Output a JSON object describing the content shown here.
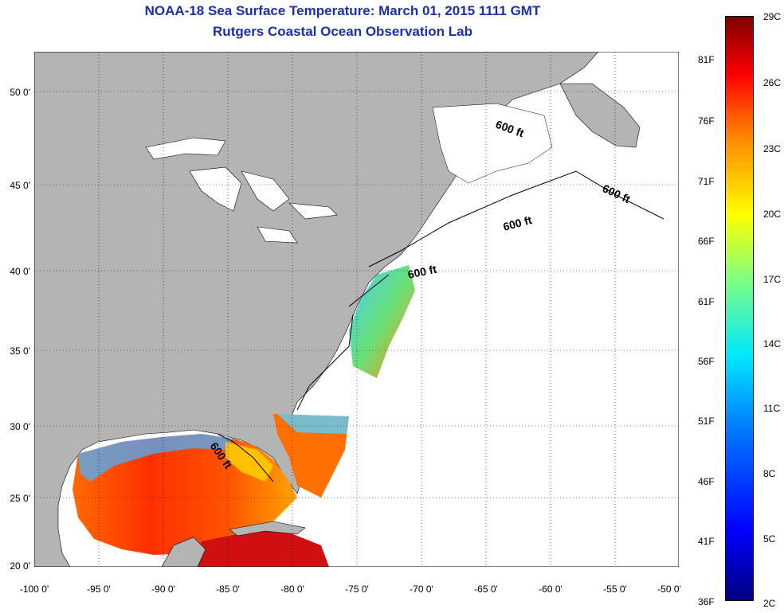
{
  "header": {
    "title": "NOAA-18 Sea Surface Temperature:  March 01, 2015 1111 GMT",
    "subtitle": "Rutgers Coastal Ocean Observation Lab"
  },
  "map": {
    "lat_labels": [
      "50 0'",
      "45 0'",
      "40 0'",
      "35 0'",
      "30 0'",
      "25 0'",
      "20 0'"
    ],
    "lon_labels": [
      "-100 0'",
      "-95 0'",
      "-90 0'",
      "-85 0'",
      "-80 0'",
      "-75 0'",
      "-70 0'",
      "-65 0'",
      "-60 0'",
      "-55 0'",
      "-50 0'"
    ],
    "contour_labels": [
      "600 ft",
      "600 ft",
      "600 ft",
      "600 ft",
      "600 ft"
    ],
    "land_color": "#b4b4b4",
    "ocean_color": "#ffffff",
    "grid": true
  },
  "colorbar": {
    "fahrenheit": [
      "81F",
      "76F",
      "71F",
      "66F",
      "61F",
      "56F",
      "51F",
      "46F",
      "41F",
      "36F"
    ],
    "celsius": [
      "29C",
      "26C",
      "23C",
      "20C",
      "17C",
      "14C",
      "11C",
      "8C",
      "5C",
      "2C"
    ],
    "min_color": "#00007f",
    "max_color": "#7f0000"
  }
}
